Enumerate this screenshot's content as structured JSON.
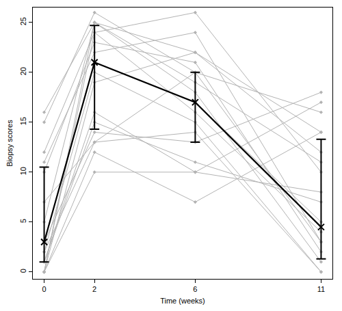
{
  "chart_data": {
    "type": "line",
    "x_label": "Time (weeks)",
    "y_label": "Biopsy scores",
    "x": [
      0,
      2,
      6,
      11
    ],
    "xlim": [
      -0.45,
      11.45
    ],
    "xticks": [
      0,
      2,
      6,
      11
    ],
    "ylim": [
      -0.7,
      26.5
    ],
    "yticks": [
      0,
      5,
      10,
      15,
      20,
      25
    ],
    "grid": false,
    "series": [
      {
        "color": "#b3b3b3",
        "marker": "diamond",
        "line_style": "solid",
        "values": [
          16,
          25,
          22,
          14
        ]
      },
      {
        "color": "#b3b3b3",
        "marker": "diamond",
        "line_style": "solid",
        "values": [
          15,
          26,
          20,
          3
        ]
      },
      {
        "color": "#b3b3b3",
        "marker": "diamond",
        "line_style": "solid",
        "values": [
          12,
          24,
          26,
          10
        ]
      },
      {
        "color": "#b3b3b3",
        "marker": "diamond",
        "line_style": "solid",
        "values": [
          11,
          22,
          24,
          3
        ]
      },
      {
        "color": "#b3b3b3",
        "marker": "diamond",
        "line_style": "solid",
        "values": [
          10,
          23,
          21,
          2
        ]
      },
      {
        "color": "#b3b3b3",
        "marker": "diamond",
        "line_style": "solid",
        "values": [
          7,
          13,
          20,
          16
        ]
      },
      {
        "color": "#b3b3b3",
        "marker": "diamond",
        "line_style": "solid",
        "values": [
          5,
          25,
          19,
          11
        ]
      },
      {
        "color": "#b3b3b3",
        "marker": "diamond",
        "line_style": "solid",
        "values": [
          3,
          14,
          13,
          18
        ]
      },
      {
        "color": "#b3b3b3",
        "marker": "diamond",
        "line_style": "solid",
        "values": [
          3,
          21,
          17,
          5
        ]
      },
      {
        "color": "#b3b3b3",
        "marker": "diamond",
        "line_style": "solid",
        "values": [
          2,
          20,
          15,
          0
        ]
      },
      {
        "color": "#b3b3b3",
        "marker": "diamond",
        "line_style": "solid",
        "values": [
          1,
          16,
          10,
          8
        ]
      },
      {
        "color": "#b3b3b3",
        "marker": "diamond",
        "line_style": "solid",
        "values": [
          0,
          10,
          10,
          17
        ]
      },
      {
        "color": "#b3b3b3",
        "marker": "diamond",
        "line_style": "solid",
        "values": [
          0,
          12,
          7,
          14
        ]
      },
      {
        "color": "#b3b3b3",
        "marker": "diamond",
        "line_style": "solid",
        "values": [
          0,
          19,
          22,
          12
        ]
      },
      {
        "color": "#b3b3b3",
        "marker": "diamond",
        "line_style": "solid",
        "values": [
          1,
          15,
          11,
          7
        ]
      },
      {
        "color": "#b3b3b3",
        "marker": "diamond",
        "line_style": "solid",
        "values": [
          0,
          25,
          18,
          1
        ]
      },
      {
        "color": "#b3b3b3",
        "marker": "diamond",
        "line_style": "solid",
        "values": [
          2,
          13,
          14,
          0
        ]
      },
      {
        "color": "#b3b3b3",
        "marker": "diamond",
        "line_style": "solid",
        "values": [
          0,
          24,
          16,
          4
        ]
      },
      {
        "color": "#000000",
        "marker": "x",
        "line_style": "solid",
        "values": [
          3,
          21,
          17,
          4.5
        ],
        "error_plus": [
          7.5,
          3.7,
          3,
          8.8
        ],
        "error_minus": [
          2,
          6.7,
          4,
          3.2
        ]
      }
    ]
  }
}
